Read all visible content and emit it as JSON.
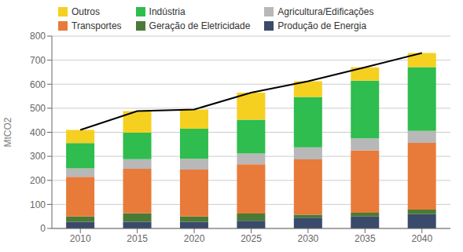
{
  "chart_data": {
    "type": "bar",
    "stacked": true,
    "grid": true,
    "legend": "top",
    "ylabel": "MtCO2",
    "categories": [
      "2010",
      "2015",
      "2020",
      "2025",
      "2030",
      "2035",
      "2040"
    ],
    "ylim": [
      0,
      800
    ],
    "yticks": [
      0,
      100,
      200,
      300,
      400,
      500,
      600,
      700,
      800
    ],
    "series": [
      {
        "name": "Produção de Energia",
        "color": "#3a4a6b",
        "values": [
          28,
          28,
          28,
          32,
          45,
          50,
          60
        ]
      },
      {
        "name": "Geração de Eletricidade",
        "color": "#4a7a35",
        "values": [
          22,
          35,
          22,
          30,
          12,
          15,
          18
        ]
      },
      {
        "name": "Transportes",
        "color": "#e87b3a",
        "values": [
          165,
          185,
          195,
          205,
          230,
          260,
          278
        ]
      },
      {
        "name": "Agricultura/Edificações",
        "color": "#b8b8b8",
        "values": [
          35,
          40,
          45,
          45,
          50,
          50,
          50
        ]
      },
      {
        "name": "Indústria",
        "color": "#2ebd4e",
        "values": [
          105,
          110,
          125,
          140,
          210,
          240,
          265
        ]
      },
      {
        "name": "Outros",
        "color": "#f5d020",
        "values": [
          55,
          90,
          80,
          113,
          65,
          55,
          59
        ]
      },
      {
        "type": "line",
        "color": "#000000",
        "values": [
          410,
          488,
          495,
          565,
          612,
          670,
          730
        ]
      }
    ]
  }
}
